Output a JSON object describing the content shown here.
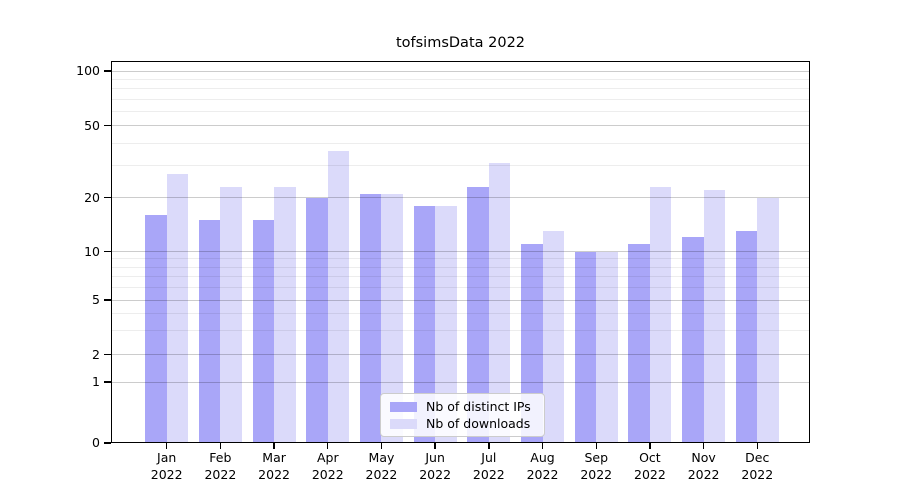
{
  "chart_data": {
    "type": "bar",
    "title": "tofsimsData 2022",
    "categories": [
      "Jan",
      "Feb",
      "Mar",
      "Apr",
      "May",
      "Jun",
      "Jul",
      "Aug",
      "Sep",
      "Oct",
      "Nov",
      "Dec"
    ],
    "category_year": "2022",
    "series": [
      {
        "name": "Nb of distinct IPs",
        "color": "#a9a6f8",
        "values": [
          16,
          15,
          15,
          20,
          21,
          18,
          23,
          11,
          10,
          11,
          12,
          13
        ]
      },
      {
        "name": "Nb of downloads",
        "color": "#dbdafa",
        "values": [
          27,
          23,
          23,
          36,
          21,
          18,
          31,
          13,
          10,
          23,
          22,
          20
        ]
      }
    ],
    "xlabel": "",
    "ylabel": "",
    "yscale": "symlog",
    "ylim": [
      0,
      114
    ],
    "y_ticks": [
      "100",
      "50",
      "20",
      "10",
      "5",
      "2",
      "1",
      "0"
    ],
    "y_minor_gridlines": [
      90,
      80,
      70,
      60,
      40,
      30,
      9,
      8,
      7,
      6,
      4,
      3
    ],
    "grid": true,
    "legend": {
      "position": "lower center",
      "entries": [
        "Nb of distinct IPs",
        "Nb of downloads"
      ]
    },
    "colors": {
      "background": "#ffffff",
      "axis": "#000000",
      "bar_distinct_ips": "#a9a6f8",
      "bar_downloads": "#dbdafa"
    }
  }
}
